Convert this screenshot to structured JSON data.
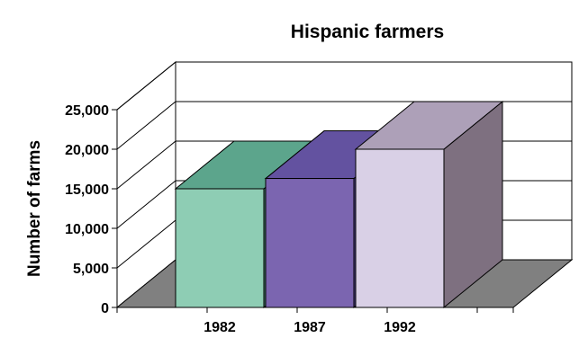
{
  "chart_data": {
    "type": "bar",
    "title": "Hispanic farmers",
    "ylabel": "Number of farms",
    "xlabel": "",
    "categories": [
      "1982",
      "1987",
      "1992"
    ],
    "values": [
      15000,
      16300,
      20000
    ],
    "ylim": [
      0,
      25000
    ],
    "yticks": [
      0,
      5000,
      10000,
      15000,
      20000,
      25000
    ],
    "ytick_labels": [
      "0",
      "5,000",
      "10,000",
      "15,000",
      "20,000",
      "25,000"
    ],
    "grid": true,
    "style": "3d",
    "colors": [
      {
        "front": "#8ecdb4",
        "top": "#5ca58c",
        "side": "#3f7a66"
      },
      {
        "front": "#7b65b0",
        "top": "#6352a0",
        "side": "#4a3c80"
      },
      {
        "front": "#d9d0e6",
        "top": "#ada0b8",
        "side": "#7e7080"
      }
    ],
    "floor_color": "#808080"
  }
}
